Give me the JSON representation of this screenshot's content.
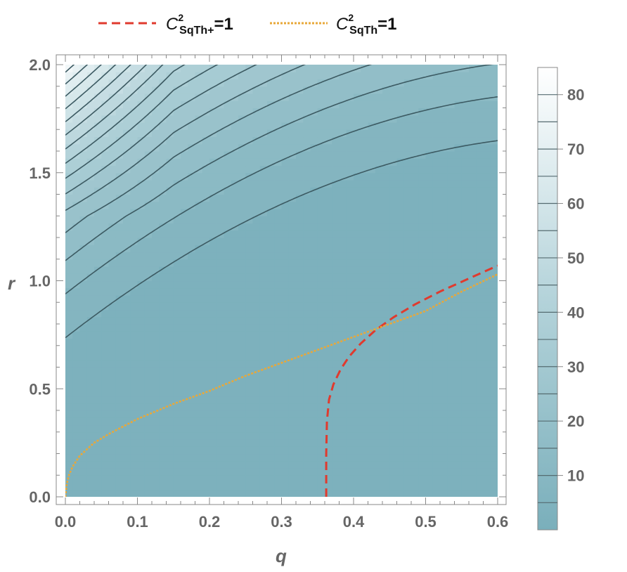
{
  "chart_data": {
    "type": "contour",
    "xlabel": "q",
    "ylabel": "r",
    "xlim": [
      0,
      0.6
    ],
    "ylim": [
      0,
      2.0
    ],
    "x_ticks": [
      "0.0",
      "0.1",
      "0.2",
      "0.3",
      "0.4",
      "0.5",
      "0.6"
    ],
    "y_ticks": [
      "0.0",
      "0.5",
      "1.0",
      "1.5",
      "2.0"
    ],
    "colorbar": {
      "min": 0,
      "max": 85,
      "ticks": [
        "10",
        "20",
        "30",
        "40",
        "50",
        "60",
        "70",
        "80"
      ],
      "contour_levels": [
        5,
        10,
        15,
        20,
        25,
        30,
        35,
        40,
        45,
        50,
        55,
        60,
        65,
        70,
        75,
        80
      ],
      "color_low": "#7aafbb",
      "color_high": "#ffffff"
    },
    "legend": {
      "placement": "top",
      "items": [
        {
          "base": "C",
          "sup": "2",
          "sub": "SqTh+",
          "suffix": "=1",
          "color": "#e03a2e",
          "style": "dashed"
        },
        {
          "base": "C",
          "sup": "2",
          "sub": "SqTh",
          "suffix": "=1",
          "color": "#e8a83a",
          "style": "dotted"
        }
      ]
    },
    "series": [
      {
        "name": "C2SqTh+=1",
        "color": "#e03a2e",
        "style": "dashed",
        "x": [
          0.362,
          0.362,
          0.363,
          0.366,
          0.372,
          0.382,
          0.394,
          0.41,
          0.43,
          0.455,
          0.485,
          0.52,
          0.56,
          0.6
        ],
        "y": [
          0.0,
          0.2,
          0.35,
          0.45,
          0.52,
          0.59,
          0.65,
          0.71,
          0.77,
          0.83,
          0.89,
          0.95,
          1.01,
          1.07
        ]
      },
      {
        "name": "C2SqTh=1",
        "color": "#e8a83a",
        "style": "dotted",
        "x": [
          0.0,
          0.002,
          0.005,
          0.01,
          0.02,
          0.04,
          0.06,
          0.1,
          0.15,
          0.2,
          0.25,
          0.3,
          0.35,
          0.4,
          0.45,
          0.5,
          0.55,
          0.6
        ],
        "y": [
          0.0,
          0.06,
          0.1,
          0.14,
          0.19,
          0.25,
          0.29,
          0.36,
          0.43,
          0.49,
          0.56,
          0.62,
          0.68,
          0.74,
          0.8,
          0.86,
          0.95,
          1.03
        ]
      }
    ]
  }
}
